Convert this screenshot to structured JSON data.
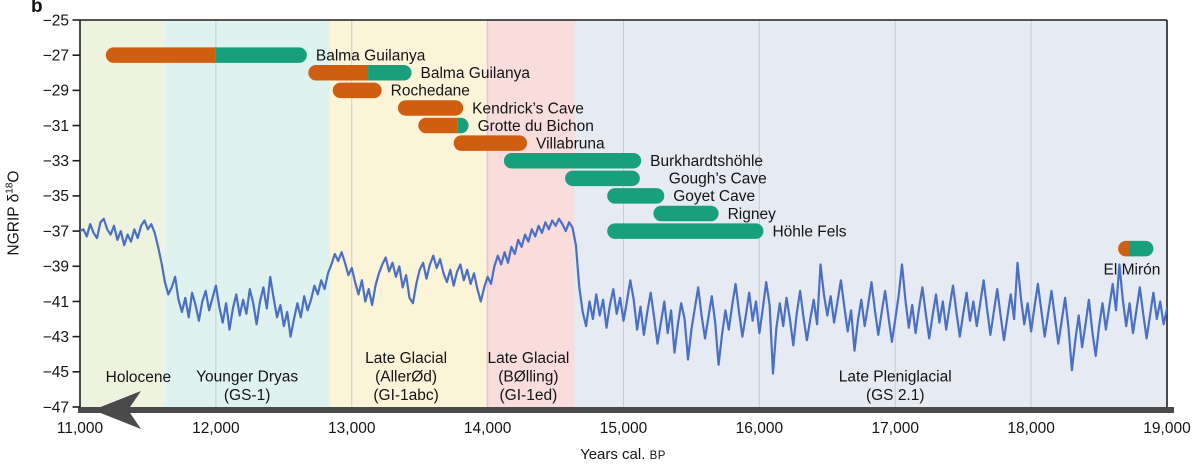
{
  "panel_label": "b",
  "axes": {
    "y_label": {
      "prefix": "NGRIP δ",
      "sup": "18",
      "suffix": "O"
    },
    "x_label": {
      "text": "Years cal. ",
      "unit": "BP"
    }
  },
  "colors": {
    "bar_orange": "#cf5e10",
    "bar_green": "#18a07c",
    "line_blue": "#4a6fc3",
    "axis_dark": "#4a4a4a",
    "spine": "#1f1f1f",
    "gridline": "#c7ccd4",
    "band_holocene": "#eef3e0",
    "band_younger_dryas": "#def2ef",
    "band_allerod": "#fcf4d8",
    "band_bolling": "#f9dcdc",
    "band_pleniglacial": "#e5eaf3"
  },
  "chart_data": {
    "type": "line",
    "xlabel": "Years cal. BP",
    "ylabel": "NGRIP δ18O",
    "xlim": [
      11000,
      19000
    ],
    "ylim": [
      -47,
      -25
    ],
    "grid": "vertical",
    "x_ticks": [
      {
        "v": 11000,
        "label": "11,000"
      },
      {
        "v": 12000,
        "label": "12,000"
      },
      {
        "v": 13000,
        "label": "13,000"
      },
      {
        "v": 14000,
        "label": "14,000"
      },
      {
        "v": 15000,
        "label": "15,000"
      },
      {
        "v": 16000,
        "label": "16,000"
      },
      {
        "v": 17000,
        "label": "17,000"
      },
      {
        "v": 18000,
        "label": "18,000"
      },
      {
        "v": 19000,
        "label": "19,000"
      }
    ],
    "y_ticks": [
      {
        "v": -25,
        "label": "−25"
      },
      {
        "v": -27,
        "label": "−27"
      },
      {
        "v": -29,
        "label": "−29"
      },
      {
        "v": -31,
        "label": "−31"
      },
      {
        "v": -33,
        "label": "−33"
      },
      {
        "v": -35,
        "label": "−35"
      },
      {
        "v": -37,
        "label": "−37"
      },
      {
        "v": -39,
        "label": "−39"
      },
      {
        "v": -41,
        "label": "−41"
      },
      {
        "v": -43,
        "label": "−43"
      },
      {
        "v": -45,
        "label": "−45"
      },
      {
        "v": -47,
        "label": "−47"
      }
    ],
    "periods": [
      {
        "label_lines": [
          "Holocene"
        ],
        "from": 11000,
        "to": 11620,
        "fill": "#eef3e0",
        "label_year": 11430
      },
      {
        "label_lines": [
          "Younger Dryas",
          "(GS-1)"
        ],
        "from": 11620,
        "to": 12840,
        "fill": "#def2ef",
        "label_year": 12230
      },
      {
        "label_lines": [
          "Late Glacial",
          "(AllerØd)",
          "(GI-1abc)"
        ],
        "from": 12840,
        "to": 13990,
        "fill": "#fcf4d8",
        "label_year": 13400
      },
      {
        "label_lines": [
          "Late Glacial",
          "(BØlling)",
          "(GI-1ed)"
        ],
        "from": 13990,
        "to": 14640,
        "fill": "#f9dcdc",
        "label_year": 14300
      },
      {
        "label_lines": [
          "Late Pleniglacial",
          "(GS 2.1)"
        ],
        "from": 14640,
        "to": 19000,
        "fill": "#e5eaf3",
        "label_year": 17000
      }
    ],
    "sites": [
      {
        "label": "Balma Guilanya",
        "row": -27,
        "from": 11190,
        "to": 12670,
        "split": 12000,
        "left_color": "orange",
        "right_color": "green",
        "label_pos": "right",
        "label_gap": 9
      },
      {
        "label": "Balma Guilanya",
        "row": -28,
        "from": 12680,
        "to": 13440,
        "split": 13120,
        "left_color": "orange",
        "right_color": "green",
        "label_pos": "right",
        "label_gap": 9
      },
      {
        "label": "Rochedane",
        "row": -29,
        "from": 12860,
        "to": 13220,
        "split": null,
        "left_color": "orange",
        "right_color": "orange",
        "label_pos": "right",
        "label_gap": 9
      },
      {
        "label": "Kendrick’s Cave",
        "row": -30,
        "from": 13340,
        "to": 13820,
        "split": null,
        "left_color": "orange",
        "right_color": "orange",
        "label_pos": "right",
        "label_gap": 9
      },
      {
        "label": "Grotte du Bichon",
        "row": -31,
        "from": 13490,
        "to": 13860,
        "split": 13780,
        "left_color": "orange",
        "right_color": "green",
        "label_pos": "right",
        "label_gap": 9
      },
      {
        "label": "Villabruna",
        "row": -32,
        "from": 13750,
        "to": 14290,
        "split": null,
        "left_color": "orange",
        "right_color": "orange",
        "label_pos": "right",
        "label_gap": 9
      },
      {
        "label": "Burkhardtshöhle",
        "row": -33,
        "from": 14120,
        "to": 15130,
        "split": null,
        "left_color": "green",
        "right_color": "green",
        "label_pos": "right",
        "label_gap": 9
      },
      {
        "label": "Gough’s Cave",
        "row": -34,
        "from": 14570,
        "to": 15120,
        "split": null,
        "left_color": "green",
        "right_color": "green",
        "label_pos": "right",
        "label_gap": 29
      },
      {
        "label": "Goyet Cave",
        "row": -35,
        "from": 14880,
        "to": 15300,
        "split": null,
        "left_color": "green",
        "right_color": "green",
        "label_pos": "right",
        "label_gap": 9
      },
      {
        "label": "Rigney",
        "row": -36,
        "from": 15220,
        "to": 15700,
        "split": null,
        "left_color": "green",
        "right_color": "green",
        "label_pos": "right",
        "label_gap": 9
      },
      {
        "label": "Höhle Fels",
        "row": -37,
        "from": 14880,
        "to": 16030,
        "split": null,
        "left_color": "green",
        "right_color": "green",
        "label_pos": "right",
        "label_gap": 9
      },
      {
        "label": "El Mirón",
        "row": -38,
        "from": 18640,
        "to": 18900,
        "split": 18720,
        "left_color": "orange",
        "right_color": "green",
        "label_pos": "below",
        "label_gap": 7
      }
    ],
    "line": {
      "name": "NGRIP δ18O",
      "x_start": 11000,
      "x_step": 25,
      "values": [
        -37.0,
        -36.9,
        -37.3,
        -36.6,
        -37.1,
        -37.4,
        -36.5,
        -36.3,
        -36.9,
        -37.2,
        -36.7,
        -37.5,
        -37.0,
        -37.8,
        -37.2,
        -37.6,
        -36.9,
        -37.4,
        -36.7,
        -36.4,
        -36.9,
        -36.6,
        -37.1,
        -37.9,
        -38.8,
        -39.9,
        -40.6,
        -40.2,
        -39.6,
        -40.9,
        -41.6,
        -40.8,
        -41.9,
        -40.5,
        -41.2,
        -42.1,
        -41.0,
        -40.4,
        -41.5,
        -40.8,
        -40.1,
        -41.3,
        -42.2,
        -41.1,
        -42.6,
        -41.4,
        -40.6,
        -41.8,
        -40.9,
        -41.7,
        -40.3,
        -41.1,
        -42.3,
        -41.0,
        -40.2,
        -41.4,
        -39.6,
        -40.8,
        -41.9,
        -41.2,
        -42.4,
        -41.6,
        -43.0,
        -42.0,
        -41.1,
        -41.9,
        -40.7,
        -41.5,
        -40.9,
        -40.1,
        -40.6,
        -39.8,
        -40.3,
        -39.4,
        -38.9,
        -38.3,
        -38.7,
        -38.2,
        -38.8,
        -39.5,
        -39.1,
        -39.9,
        -40.6,
        -39.8,
        -41.0,
        -40.3,
        -41.2,
        -40.1,
        -39.4,
        -38.9,
        -38.5,
        -39.3,
        -38.8,
        -39.6,
        -39.0,
        -40.2,
        -39.5,
        -40.8,
        -41.1,
        -40.0,
        -39.2,
        -38.8,
        -39.7,
        -38.9,
        -38.4,
        -39.1,
        -38.6,
        -39.4,
        -39.9,
        -39.2,
        -40.1,
        -39.3,
        -38.9,
        -39.8,
        -39.2,
        -40.0,
        -39.4,
        -40.3,
        -41.0,
        -40.2,
        -39.6,
        -40.0,
        -39.0,
        -38.4,
        -38.9,
        -38.2,
        -38.8,
        -37.9,
        -38.3,
        -37.5,
        -37.9,
        -37.2,
        -37.6,
        -36.9,
        -37.3,
        -36.7,
        -37.1,
        -36.5,
        -36.9,
        -36.4,
        -36.7,
        -36.3,
        -36.6,
        -37.0,
        -36.5,
        -36.8,
        -37.8,
        -40.2,
        -41.6,
        -42.4,
        -41.0,
        -42.0,
        -40.6,
        -41.8,
        -40.9,
        -42.5,
        -41.2,
        -40.3,
        -41.7,
        -40.8,
        -42.1,
        -41.0,
        -39.8,
        -40.9,
        -42.6,
        -41.3,
        -42.9,
        -41.6,
        -40.5,
        -41.9,
        -43.4,
        -42.2,
        -41.0,
        -42.8,
        -41.5,
        -43.9,
        -42.3,
        -41.1,
        -42.0,
        -44.3,
        -42.6,
        -41.4,
        -40.2,
        -41.8,
        -43.1,
        -41.9,
        -40.7,
        -42.2,
        -44.6,
        -42.9,
        -41.5,
        -42.6,
        -41.2,
        -40.0,
        -41.6,
        -43.0,
        -41.8,
        -40.5,
        -42.1,
        -41.0,
        -42.8,
        -41.4,
        -39.9,
        -41.2,
        -45.1,
        -42.5,
        -41.1,
        -42.4,
        -40.8,
        -42.0,
        -43.5,
        -41.7,
        -40.4,
        -41.9,
        -43.2,
        -42.0,
        -40.9,
        -42.3,
        -38.9,
        -40.6,
        -41.8,
        -40.7,
        -42.2,
        -41.0,
        -39.8,
        -41.3,
        -42.7,
        -41.5,
        -43.8,
        -42.1,
        -40.9,
        -42.4,
        -41.2,
        -39.9,
        -41.5,
        -42.9,
        -41.6,
        -40.4,
        -41.9,
        -43.3,
        -42.0,
        -40.7,
        -38.9,
        -40.9,
        -42.5,
        -41.2,
        -42.8,
        -41.4,
        -40.2,
        -41.7,
        -43.1,
        -41.8,
        -40.6,
        -42.2,
        -41.0,
        -42.6,
        -41.3,
        -40.1,
        -41.6,
        -43.0,
        -41.7,
        -40.5,
        -42.1,
        -41.0,
        -42.4,
        -41.1,
        -39.8,
        -41.4,
        -42.9,
        -41.6,
        -40.3,
        -41.8,
        -43.2,
        -41.9,
        -40.6,
        -42.0,
        -38.8,
        -40.8,
        -42.3,
        -41.1,
        -42.7,
        -41.3,
        -40.0,
        -41.5,
        -43.0,
        -41.7,
        -40.4,
        -41.9,
        -43.4,
        -42.1,
        -40.8,
        -42.5,
        -44.9,
        -43.2,
        -41.8,
        -43.6,
        -42.3,
        -40.9,
        -42.7,
        -44.1,
        -42.4,
        -41.1,
        -42.6,
        -41.3,
        -40.0,
        -41.5,
        -38.9,
        -40.9,
        -42.4,
        -41.1,
        -42.8,
        -41.5,
        -40.2,
        -41.7,
        -43.1,
        -41.8,
        -40.5,
        -42.0,
        -41.0,
        -42.3,
        -41.4
      ]
    }
  }
}
